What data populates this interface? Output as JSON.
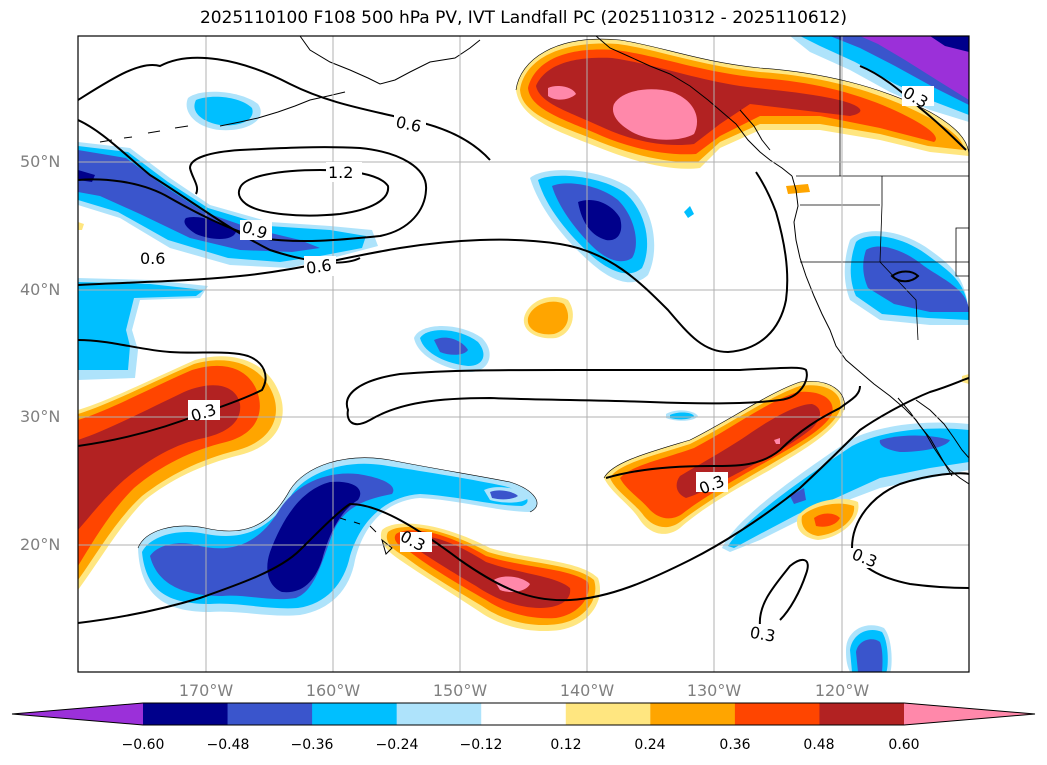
{
  "title": "2025110100 F108 500 hPa PV, IVT Landfall PC (2025110312 - 2025110612)",
  "latitude_labels": [
    "50°N",
    "40°N",
    "30°N",
    "20°N"
  ],
  "longitude_labels": [
    "170°W",
    "160°W",
    "150°W",
    "140°W",
    "130°W",
    "120°W"
  ],
  "contour_labels": [
    "0.6",
    "1.2",
    "0.9",
    "0.6",
    "0.6",
    "0.3",
    "0.3",
    "0.3",
    "0.3",
    "0.3",
    "0.3"
  ],
  "colorbar": {
    "ticks": [
      "−0.60",
      "−0.48",
      "−0.36",
      "−0.24",
      "−0.12",
      "0.12",
      "0.24",
      "0.36",
      "0.48",
      "0.60"
    ],
    "colors": [
      "#9b30d9",
      "#00008b",
      "#3a55cc",
      "#00bfff",
      "#aee3fb",
      "#ffffff",
      "#ffe680",
      "#ffa500",
      "#ff4500",
      "#b22222",
      "#ff88aa"
    ]
  },
  "fill_colors": {
    "neg_1": "#aee3fb",
    "neg_2": "#00bfff",
    "neg_3": "#3a55cc",
    "neg_4": "#00008b",
    "neg_5": "#9b30d9",
    "pos_1": "#ffe680",
    "pos_2": "#ffa500",
    "pos_3": "#ff4500",
    "pos_4": "#b22222",
    "pos_5": "#ff88aa"
  }
}
